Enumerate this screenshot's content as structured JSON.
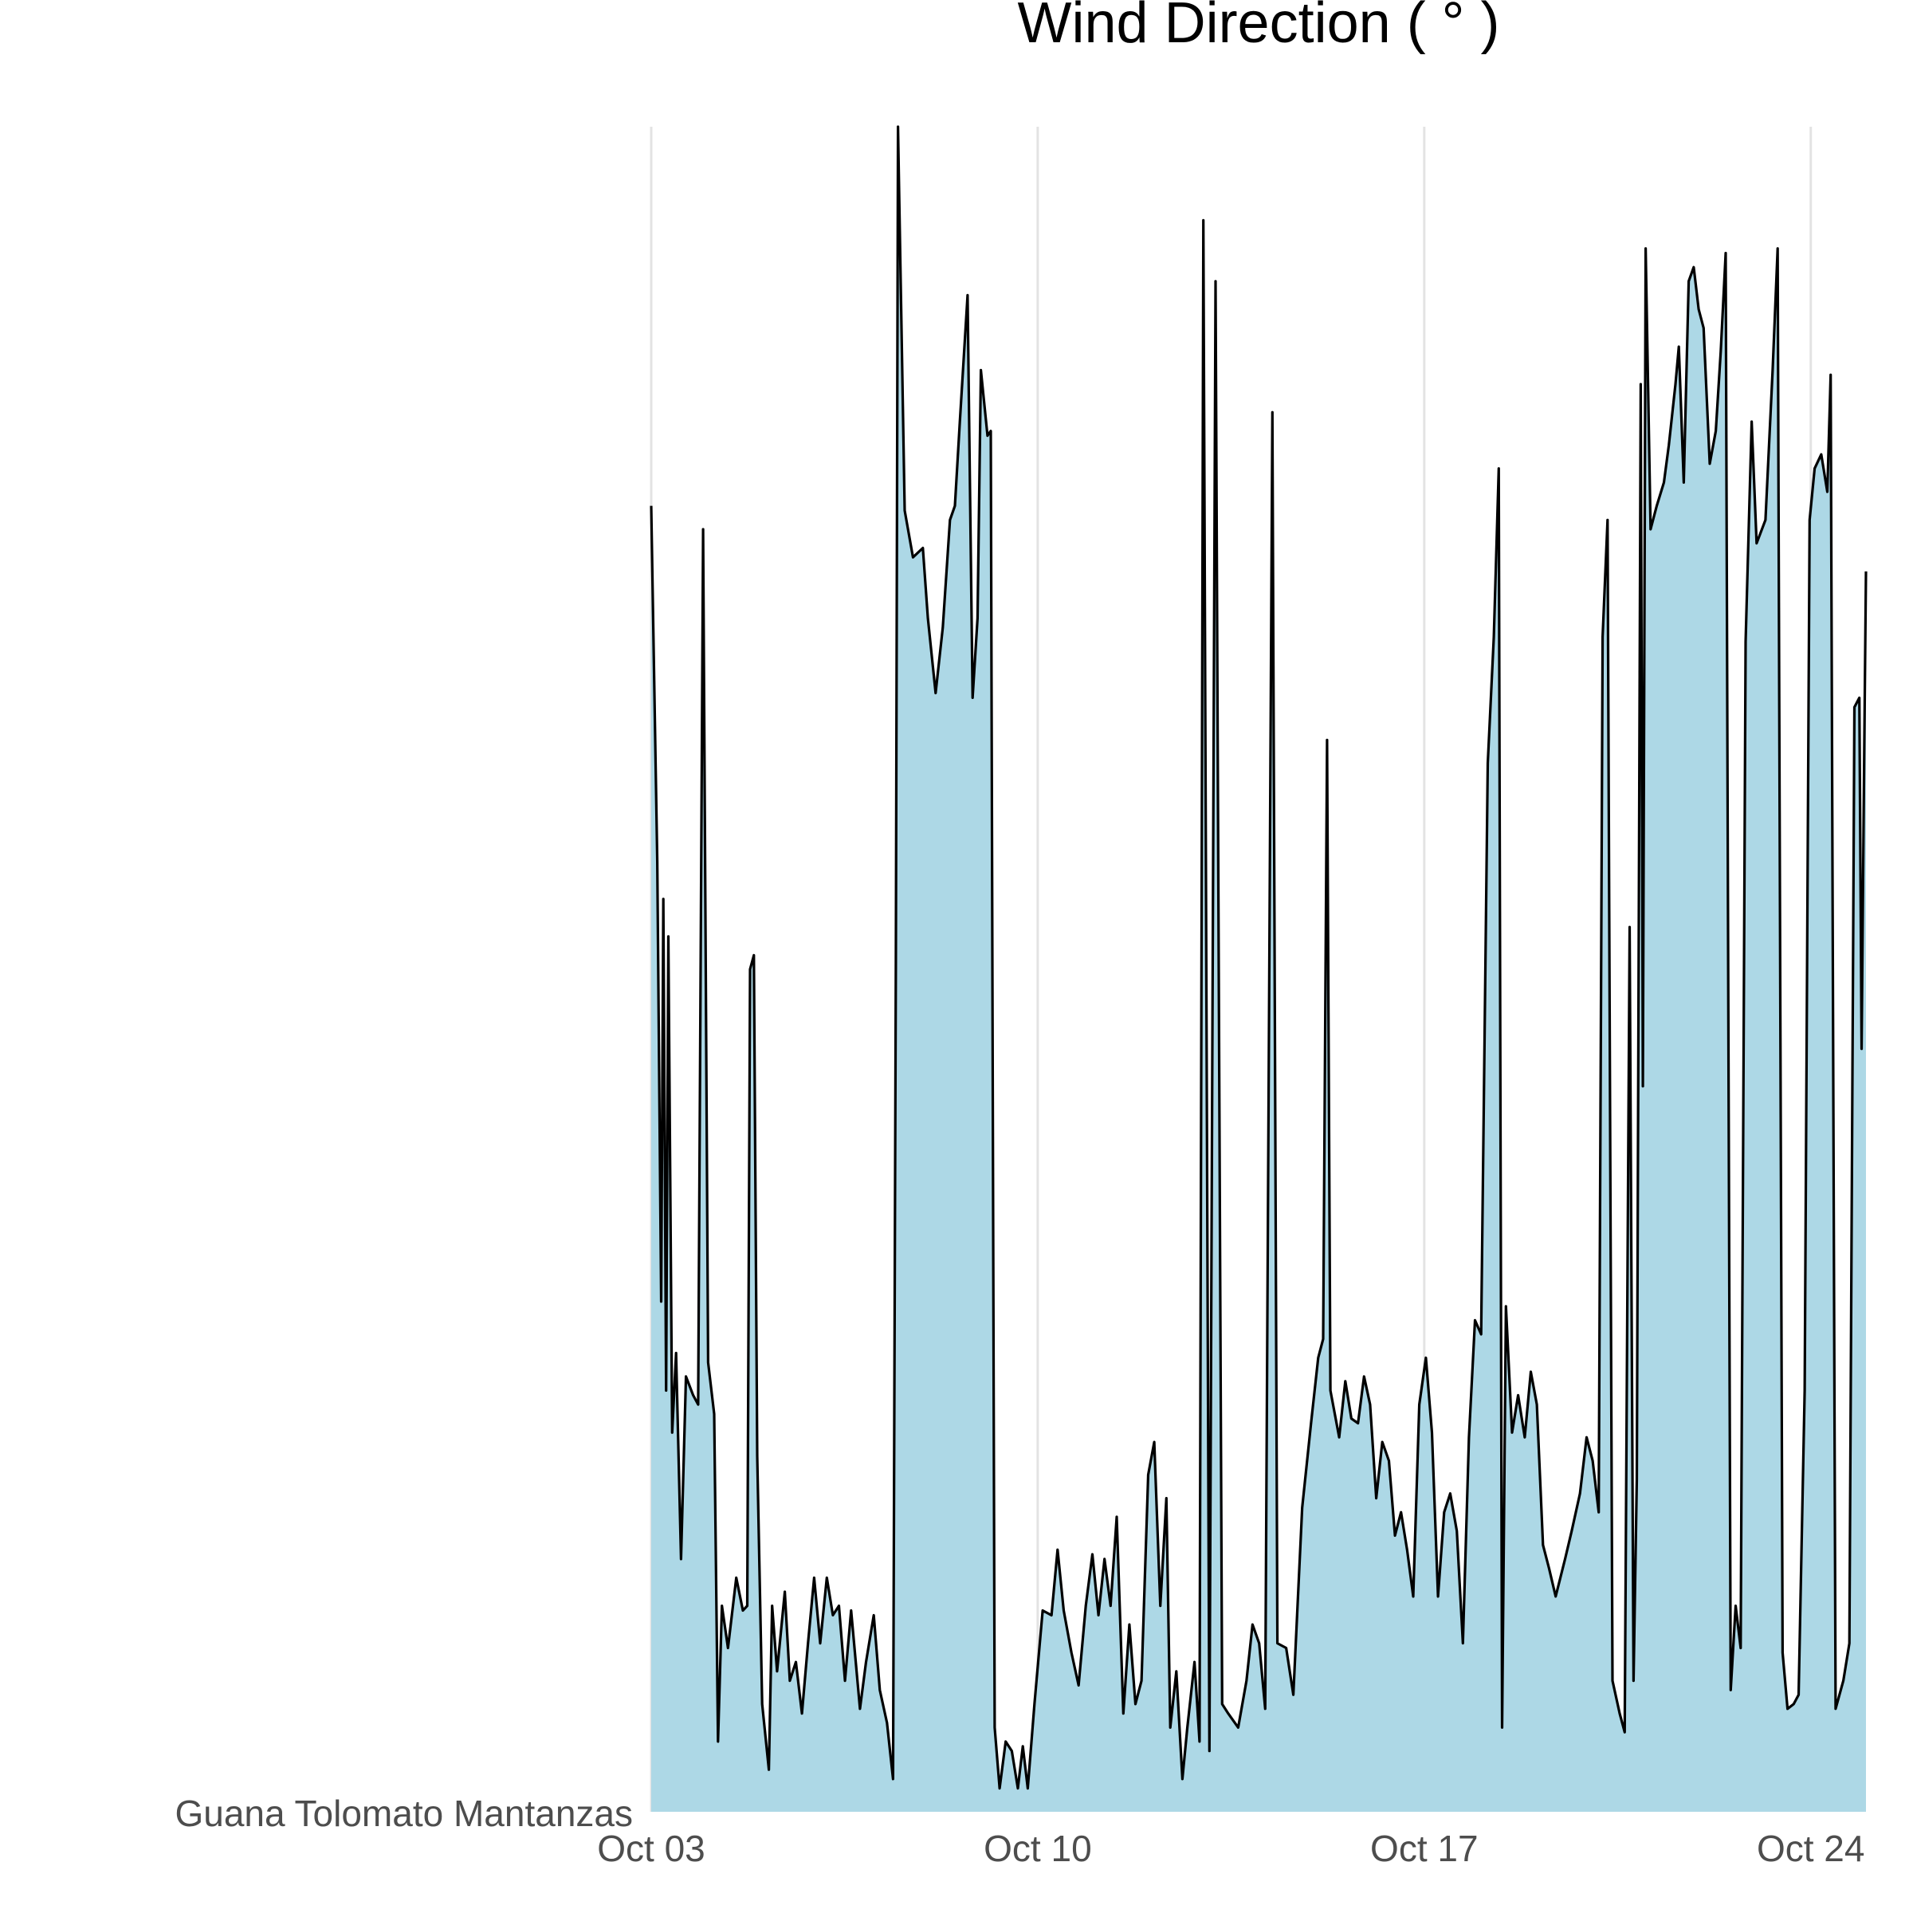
{
  "chart_data": {
    "type": "area",
    "title": "Wind Direction ( ° )",
    "x": [
      0,
      0.11,
      0.18,
      0.22,
      0.27,
      0.31,
      0.38,
      0.45,
      0.54,
      0.63,
      0.76,
      0.85,
      0.94,
      1.03,
      1.14,
      1.21,
      1.28,
      1.39,
      1.54,
      1.66,
      1.74,
      1.79,
      1.86,
      1.92,
      2.01,
      2.13,
      2.19,
      2.28,
      2.42,
      2.51,
      2.62,
      2.73,
      2.84,
      2.95,
      3.06,
      3.18,
      3.29,
      3.4,
      3.51,
      3.62,
      3.78,
      3.89,
      4.03,
      4.14,
      4.27,
      4.38,
      4.43,
      4.47,
      4.59,
      4.74,
      4.92,
      5.01,
      5.15,
      5.28,
      5.41,
      5.5,
      5.59,
      5.73,
      5.82,
      5.91,
      5.97,
      6.09,
      6.15,
      6.22,
      6.31,
      6.42,
      6.53,
      6.64,
      6.73,
      6.82,
      6.94,
      7.09,
      7.25,
      7.36,
      7.47,
      7.61,
      7.74,
      7.87,
      7.99,
      8.1,
      8.21,
      8.32,
      8.43,
      8.55,
      8.66,
      8.77,
      8.88,
      9,
      9.11,
      9.22,
      9.33,
      9.4,
      9.51,
      9.62,
      9.71,
      9.84,
      9.93,
      10,
      10.11,
      10.22,
      10.34,
      10.45,
      10.63,
      10.78,
      10.89,
      11.01,
      11.12,
      11.25,
      11.34,
      11.5,
      11.63,
      11.79,
      11.95,
      12.08,
      12.17,
      12.24,
      12.3,
      12.46,
      12.57,
      12.68,
      12.8,
      12.91,
      13.02,
      13.13,
      13.24,
      13.36,
      13.47,
      13.58,
      13.69,
      13.8,
      13.91,
      14.03,
      14.14,
      14.25,
      14.36,
      14.47,
      14.59,
      14.7,
      14.81,
      14.92,
      15.03,
      15.15,
      15.26,
      15.35,
      15.41,
      15.48,
      15.59,
      15.7,
      15.82,
      15.93,
      16.04,
      16.15,
      16.26,
      16.38,
      16.55,
      16.67,
      16.82,
      16.94,
      17.05,
      17.16,
      17.23,
      17.32,
      17.41,
      17.54,
      17.63,
      17.72,
      17.79,
      17.85,
      17.92,
      17.96,
      18.01,
      18.1,
      18.21,
      18.34,
      18.43,
      18.55,
      18.61,
      18.7,
      18.79,
      18.88,
      18.97,
      19.06,
      19.17,
      19.28,
      19.37,
      19.46,
      19.55,
      19.64,
      19.73,
      19.82,
      19.93,
      20.02,
      20.18,
      20.31,
      20.4,
      20.49,
      20.58,
      20.69,
      20.78,
      20.89,
      20.98,
      21.07,
      21.19,
      21.3,
      21.36,
      21.45,
      21.59,
      21.7,
      21.79,
      21.88,
      21.92,
      21.97,
      22
    ],
    "series": [
      {
        "name": "Guana Tolomato Mantanzas",
        "color": "#add8e6",
        "values": [
          279,
          203,
          109,
          195,
          90,
          187,
          81,
          98,
          54,
          93,
          89,
          87,
          274,
          96,
          85,
          15,
          44,
          35,
          50,
          43,
          44,
          180,
          183,
          76,
          23,
          9,
          44,
          30,
          47,
          28,
          32,
          21,
          36,
          50,
          36,
          50,
          42,
          44,
          28,
          43,
          22,
          32,
          42,
          26,
          19,
          7,
          181,
          360,
          278,
          268,
          270,
          255,
          239,
          253,
          276,
          279,
          297,
          324,
          238,
          255,
          308,
          294,
          295,
          18,
          5,
          15,
          13,
          5,
          14,
          5,
          23,
          43,
          42,
          56,
          43,
          34,
          27,
          44,
          55,
          42,
          54,
          44,
          63,
          21,
          40,
          23,
          28,
          72,
          79,
          44,
          67,
          18,
          30,
          7,
          18,
          32,
          15,
          340,
          13,
          327,
          23,
          21,
          18,
          28,
          40,
          36,
          22,
          299,
          36,
          35,
          25,
          65,
          83,
          97,
          101,
          229,
          90,
          80,
          92,
          84,
          83,
          93,
          87,
          67,
          79,
          75,
          59,
          64,
          56,
          46,
          87,
          97,
          81,
          46,
          64,
          68,
          60,
          36,
          80,
          105,
          102,
          224,
          251,
          287,
          18,
          108,
          81,
          89,
          80,
          94,
          87,
          57,
          52,
          46,
          54,
          60,
          68,
          80,
          75,
          64,
          251,
          276,
          28,
          21,
          17,
          189,
          28,
          71,
          305,
          155,
          334,
          274,
          279,
          284,
          292,
          305,
          313,
          284,
          327,
          330,
          321,
          317,
          288,
          295,
          312,
          333,
          26,
          44,
          35,
          250,
          297,
          271,
          276,
          308,
          334,
          34,
          22,
          23,
          25,
          90,
          276,
          287,
          290,
          282,
          307,
          22,
          28,
          36,
          236,
          238,
          163,
          228,
          265
        ]
      }
    ],
    "xlim": [
      0,
      22
    ],
    "xticks": [
      {
        "value": 0,
        "label": "Oct 03"
      },
      {
        "value": 7,
        "label": "Oct 10"
      },
      {
        "value": 14,
        "label": "Oct 17"
      },
      {
        "value": 21,
        "label": "Oct 24"
      }
    ],
    "ylim": [
      0,
      360
    ],
    "grid": true
  }
}
